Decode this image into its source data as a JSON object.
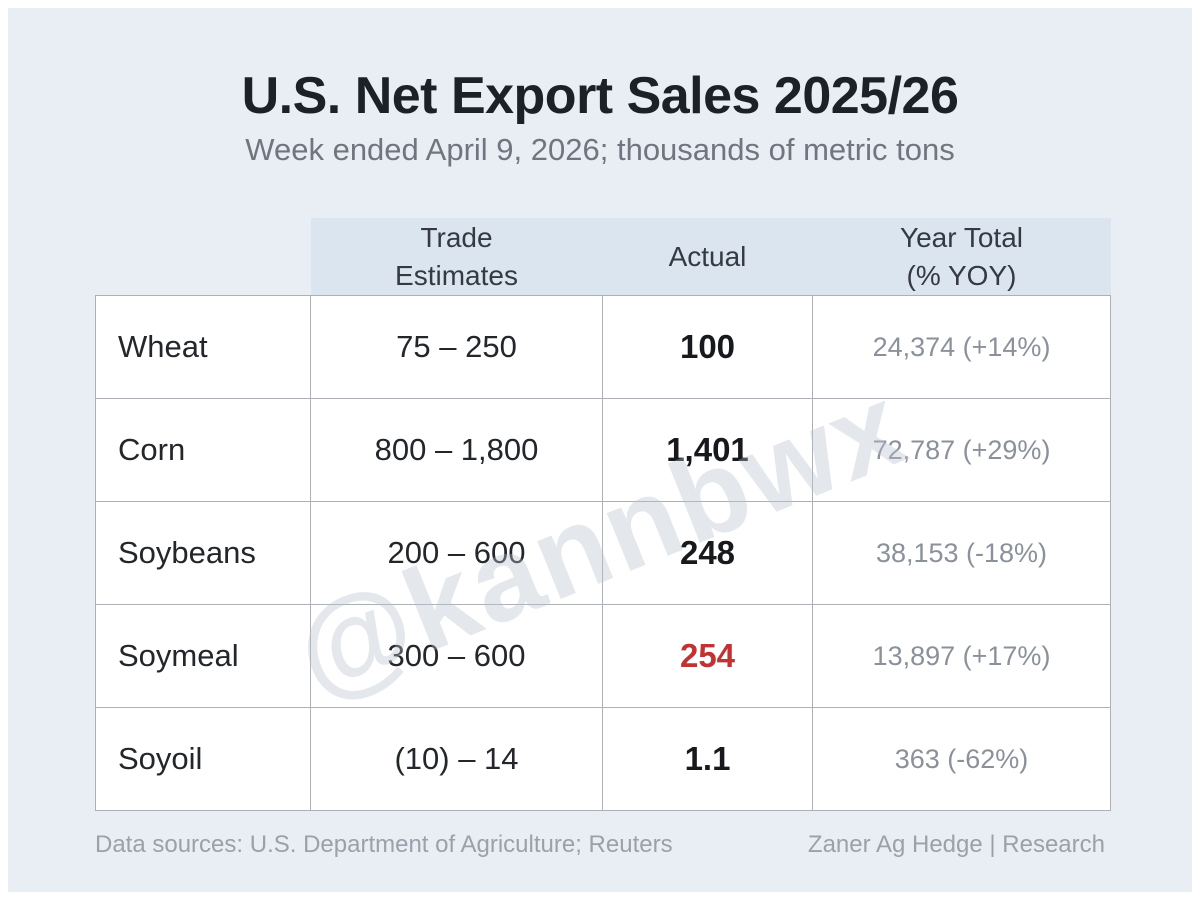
{
  "title": "U.S. Net Export Sales 2025/26",
  "subtitle": "Week ended April 9, 2026; thousands of metric tons",
  "watermark": "@kannbwx",
  "colors": {
    "page_bg": "#e9eef5",
    "header_bg": "#dbe5ef",
    "grid_line": "#adb1b7",
    "alert_red": "#c23232",
    "muted_gray": "#8b919b"
  },
  "chart_data": {
    "type": "table",
    "title": "U.S. Net Export Sales 2025/26",
    "subtitle": "Week ended April 9, 2026; thousands of metric tons",
    "units": "thousands of metric tons",
    "categories": [
      "Wheat",
      "Corn",
      "Soybeans",
      "Soymeal",
      "Soyoil"
    ],
    "series": [
      {
        "name": "Trade Estimates (low)",
        "values": [
          75,
          800,
          200,
          300,
          -10
        ]
      },
      {
        "name": "Trade Estimates (high)",
        "values": [
          250,
          1800,
          600,
          600,
          14
        ]
      },
      {
        "name": "Actual",
        "values": [
          100,
          1401,
          248,
          254,
          1.1
        ]
      },
      {
        "name": "Year Total",
        "values": [
          24374,
          72787,
          38153,
          13897,
          363
        ]
      },
      {
        "name": "Year Total YOY %",
        "values": [
          14,
          29,
          -18,
          17,
          -62
        ]
      }
    ]
  },
  "table": {
    "header": {
      "corner": "",
      "trade_estimates": "Trade\nEstimates",
      "actual": "Actual",
      "year_total": "Year Total\n(% YOY)"
    },
    "rows": [
      {
        "label": "Wheat",
        "estimate": "75 – 250",
        "actual": "100",
        "year_total": "24,374 (+14%)"
      },
      {
        "label": "Corn",
        "estimate": "800 – 1,800",
        "actual": "1,401",
        "year_total": "72,787 (+29%)"
      },
      {
        "label": "Soybeans",
        "estimate": "200 – 600",
        "actual": "248",
        "year_total": "38,153 (-18%)"
      },
      {
        "label": "Soymeal",
        "estimate": "300 – 600",
        "actual": "254",
        "year_total": "13,897 (+17%)"
      },
      {
        "label": "Soyoil",
        "estimate": "(10) – 14",
        "actual": "1.1",
        "year_total": "363 (-62%)"
      }
    ]
  },
  "footer": {
    "left": "Data sources: U.S. Department of Agriculture; Reuters",
    "right": "Zaner Ag Hedge | Research"
  }
}
